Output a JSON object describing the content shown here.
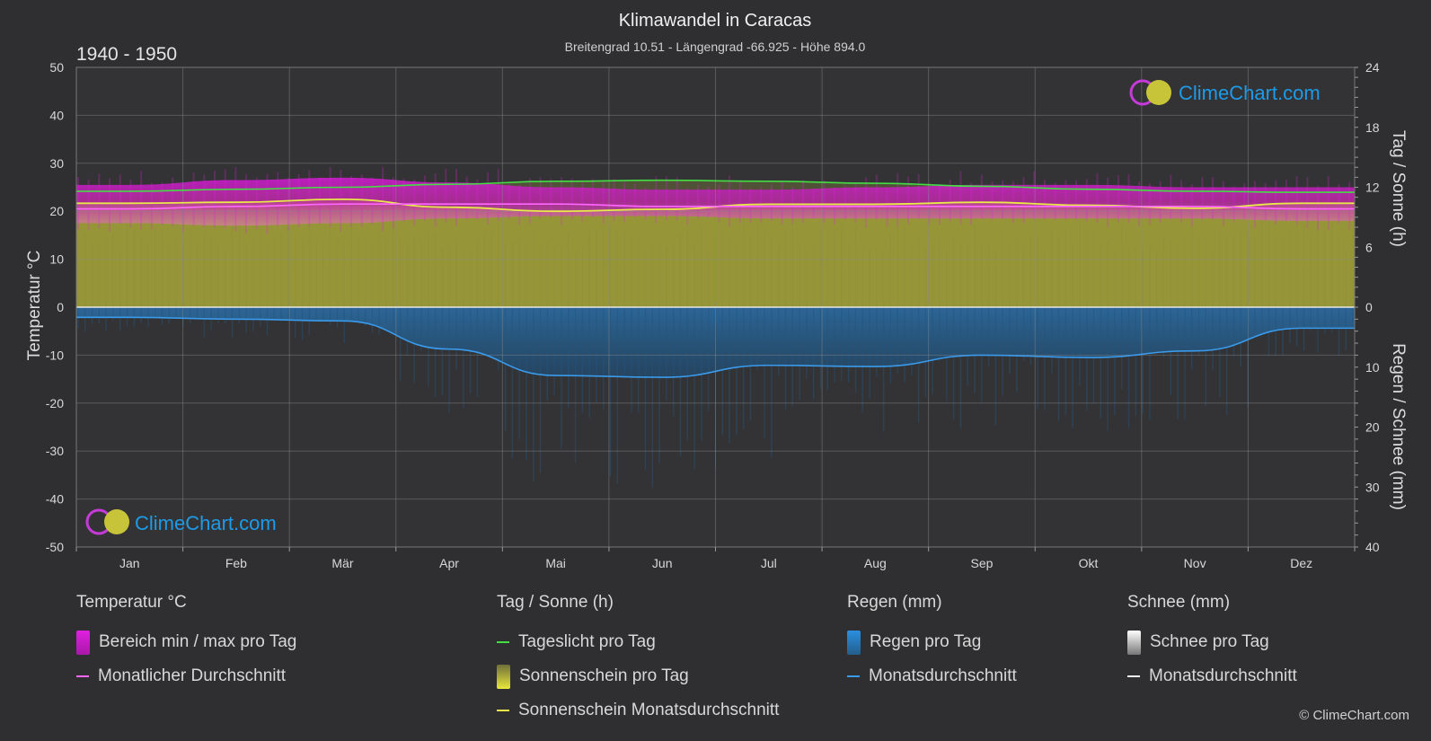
{
  "title": "Klimawandel in Caracas",
  "subtitle": "Breitengrad 10.51 - Längengrad -66.925 - Höhe 894.0",
  "period": "1940 - 1950",
  "brand": "ClimeChart.com",
  "copyright": "© ClimeChart.com",
  "colors": {
    "background": "#2f2f31",
    "temp_range": "#c81fc8",
    "temp_avg": "#ff66ff",
    "daylight": "#44dd44",
    "sunshine_fill": "#a9a93a",
    "sunshine_avg": "#e8e84a",
    "rain": "#2a7fc4",
    "rain_avg": "#3a9bec",
    "snow": "#cccccc",
    "brand_text": "#1e9be8"
  },
  "chart_data": {
    "type": "area",
    "x_label": "",
    "months": [
      "Jan",
      "Feb",
      "Mär",
      "Apr",
      "Mai",
      "Jun",
      "Jul",
      "Aug",
      "Sep",
      "Okt",
      "Nov",
      "Dez"
    ],
    "left_axis": {
      "label": "Temperatur °C",
      "min": -50,
      "max": 50,
      "ticks": [
        50,
        40,
        30,
        20,
        10,
        0,
        -10,
        -20,
        -30,
        -40,
        -50
      ]
    },
    "right_axis_top": {
      "label": "Tag / Sonne (h)",
      "min": 0,
      "max": 24,
      "ticks": [
        24,
        18,
        12,
        6,
        0
      ]
    },
    "right_axis_bottom": {
      "label": "Regen / Schnee (mm)",
      "min": 0,
      "max": 40,
      "ticks": [
        0,
        10,
        20,
        30,
        40
      ]
    },
    "grid": true,
    "series": [
      {
        "name": "Tageslicht pro Tag",
        "unit": "h",
        "values": [
          11.6,
          11.8,
          12.0,
          12.3,
          12.6,
          12.7,
          12.6,
          12.4,
          12.1,
          11.8,
          11.6,
          11.5
        ]
      },
      {
        "name": "Sonnenschein Monatsdurchschnitt",
        "unit": "h",
        "values": [
          10.4,
          10.5,
          10.8,
          10.0,
          9.6,
          9.8,
          10.3,
          10.3,
          10.5,
          10.2,
          9.9,
          10.4
        ]
      },
      {
        "name": "Monatlicher Durchschnitt",
        "unit": "°C",
        "values": [
          20.5,
          21.0,
          21.5,
          21.5,
          21.5,
          21.0,
          21.0,
          21.0,
          21.0,
          21.0,
          21.0,
          20.5
        ]
      },
      {
        "name": "Temperatur max",
        "unit": "°C",
        "values": [
          25.5,
          26.5,
          27.0,
          26.0,
          25.0,
          24.5,
          24.5,
          25.0,
          25.5,
          25.5,
          25.0,
          25.0
        ]
      },
      {
        "name": "Temperatur min",
        "unit": "°C",
        "values": [
          17.5,
          17.0,
          17.5,
          18.5,
          19.0,
          19.0,
          18.5,
          18.5,
          18.5,
          18.5,
          18.5,
          18.0
        ]
      },
      {
        "name": "Regen Monatsdurchschnitt",
        "unit": "mm",
        "values": [
          1.7,
          2.0,
          2.3,
          7.0,
          11.4,
          11.7,
          9.7,
          9.9,
          8.0,
          8.4,
          7.3,
          3.5
        ]
      }
    ]
  },
  "legend": {
    "temperature": {
      "heading": "Temperatur °C",
      "range": "Bereich min / max pro Tag",
      "avg": "Monatlicher Durchschnitt"
    },
    "sun": {
      "heading": "Tag / Sonne (h)",
      "daylight": "Tageslicht pro Tag",
      "sunshine": "Sonnenschein pro Tag",
      "sunshine_avg": "Sonnenschein Monatsdurchschnitt"
    },
    "rain": {
      "heading": "Regen (mm)",
      "per_day": "Regen pro Tag",
      "avg": "Monatsdurchschnitt"
    },
    "snow": {
      "heading": "Schnee (mm)",
      "per_day": "Schnee pro Tag",
      "avg": "Monatsdurchschnitt"
    }
  }
}
